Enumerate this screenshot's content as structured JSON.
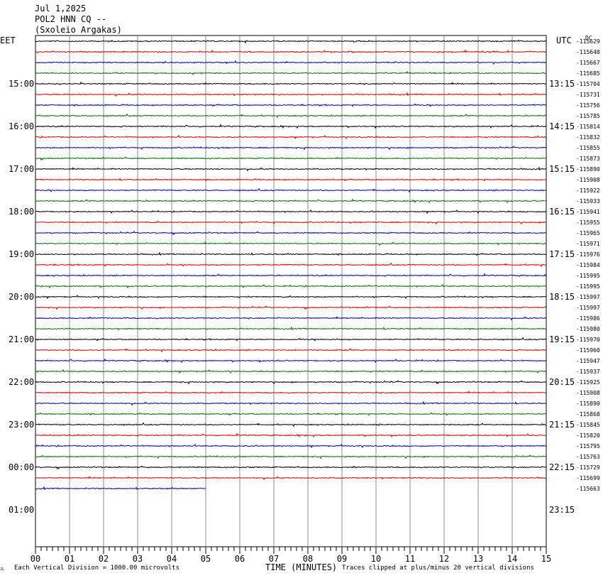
{
  "header": {
    "date": "Jul 1,2025",
    "station": "POL2 HNN CQ --",
    "site": "(Sxoleio Argakas)"
  },
  "chart_data": {
    "type": "line",
    "title": "",
    "xlabel": "TIME (MINUTES)",
    "x_ticks": [
      "00",
      "01",
      "02",
      "03",
      "04",
      "05",
      "06",
      "07",
      "08",
      "09",
      "10",
      "11",
      "12",
      "13",
      "14",
      "15"
    ],
    "x_range": [
      0,
      15
    ],
    "left_timezone": "EET",
    "right_timezone": "UTC",
    "left_hour_labels": [
      "15:00",
      "16:00",
      "17:00",
      "18:00",
      "19:00",
      "20:00",
      "21:00",
      "22:00",
      "23:00",
      "00:00",
      "01:00"
    ],
    "right_hour_labels": [
      "13:15",
      "14:15",
      "15:15",
      "16:15",
      "17:15",
      "18:15",
      "19:15",
      "20:15",
      "21:15",
      "22:15",
      "23:15"
    ],
    "dc_label": "DC",
    "trace_colors": [
      "#000000",
      "#e00000",
      "#0000c0",
      "#007000"
    ],
    "trace_offsets": [
      "-115629",
      "-115648",
      "-115667",
      "-115685",
      "-115704",
      "-115731",
      "-115756",
      "-115785",
      "-115814",
      "-115832",
      "-115855",
      "-115873",
      "-115890",
      "-115908",
      "-115922",
      "-115933",
      "-115941",
      "-115955",
      "-115965",
      "-115971",
      "-115976",
      "-115984",
      "-115995",
      "-115995",
      "-115997",
      "-115997",
      "-115986",
      "-115980",
      "-115970",
      "-115960",
      "-115947",
      "-115937",
      "-115925",
      "-115908",
      "-115890",
      "-115868",
      "-115845",
      "-115820",
      "-115795",
      "-115763",
      "-115729",
      "-115699",
      "-115663"
    ],
    "last_trace_end_minute": 5.0,
    "grid": true,
    "footer_left": "Each Vertical Division = 1000.00 microvolts",
    "footer_right": "Traces clipped at plus/minus 20 vertical divisions",
    "corner_mark": "JL"
  }
}
